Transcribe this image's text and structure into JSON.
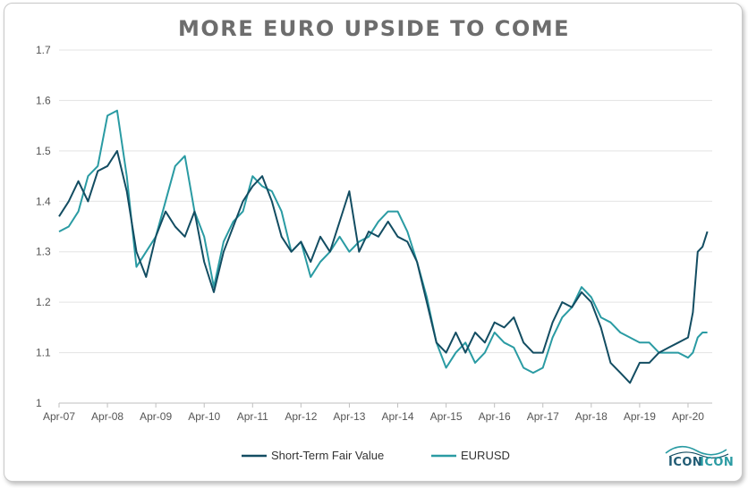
{
  "chart_data": {
    "type": "line",
    "title": "MORE EURO UPSIDE TO COME",
    "xlabel": "",
    "ylabel": "",
    "ylim": [
      1,
      1.7
    ],
    "yticks": [
      "1",
      "1.1",
      "1.2",
      "1.3",
      "1.4",
      "1.5",
      "1.6",
      "1.7"
    ],
    "xticks": [
      "Apr-07",
      "Apr-08",
      "Apr-09",
      "Apr-10",
      "Apr-11",
      "Apr-12",
      "Apr-13",
      "Apr-14",
      "Apr-15",
      "Apr-16",
      "Apr-17",
      "Apr-18",
      "Apr-19",
      "Apr-20"
    ],
    "grid": "horizontal",
    "legend_position": "bottom",
    "x": [
      2007.25,
      2007.45,
      2007.65,
      2007.85,
      2008.05,
      2008.25,
      2008.45,
      2008.65,
      2008.85,
      2009.05,
      2009.25,
      2009.45,
      2009.65,
      2009.85,
      2010.05,
      2010.25,
      2010.45,
      2010.65,
      2010.85,
      2011.05,
      2011.25,
      2011.45,
      2011.65,
      2011.85,
      2012.05,
      2012.25,
      2012.45,
      2012.65,
      2012.85,
      2013.05,
      2013.25,
      2013.45,
      2013.65,
      2013.85,
      2014.05,
      2014.25,
      2014.45,
      2014.65,
      2014.85,
      2015.05,
      2015.25,
      2015.45,
      2015.65,
      2015.85,
      2016.05,
      2016.25,
      2016.45,
      2016.65,
      2016.85,
      2017.05,
      2017.25,
      2017.45,
      2017.65,
      2017.85,
      2018.05,
      2018.25,
      2018.45,
      2018.65,
      2018.85,
      2019.05,
      2019.25,
      2019.45,
      2019.65,
      2019.85,
      2020.05,
      2020.25,
      2020.35,
      2020.45,
      2020.55,
      2020.65
    ],
    "series": [
      {
        "name": "Short-Term Fair Value",
        "color": "#134d62",
        "values": [
          1.37,
          1.4,
          1.44,
          1.4,
          1.46,
          1.47,
          1.5,
          1.42,
          1.3,
          1.25,
          1.33,
          1.38,
          1.35,
          1.33,
          1.38,
          1.28,
          1.22,
          1.3,
          1.35,
          1.4,
          1.43,
          1.45,
          1.4,
          1.33,
          1.3,
          1.32,
          1.28,
          1.33,
          1.3,
          1.36,
          1.42,
          1.3,
          1.34,
          1.33,
          1.36,
          1.33,
          1.32,
          1.28,
          1.2,
          1.12,
          1.1,
          1.14,
          1.1,
          1.14,
          1.12,
          1.16,
          1.15,
          1.17,
          1.12,
          1.1,
          1.1,
          1.16,
          1.2,
          1.19,
          1.22,
          1.2,
          1.15,
          1.08,
          1.06,
          1.04,
          1.08,
          1.08,
          1.1,
          1.11,
          1.12,
          1.13,
          1.18,
          1.3,
          1.31,
          1.34
        ]
      },
      {
        "name": "EURUSD",
        "color": "#2a9ba3",
        "values": [
          1.34,
          1.35,
          1.38,
          1.45,
          1.47,
          1.57,
          1.58,
          1.45,
          1.27,
          1.3,
          1.33,
          1.4,
          1.47,
          1.49,
          1.38,
          1.33,
          1.23,
          1.32,
          1.36,
          1.38,
          1.45,
          1.43,
          1.42,
          1.38,
          1.3,
          1.32,
          1.25,
          1.28,
          1.3,
          1.33,
          1.3,
          1.32,
          1.33,
          1.36,
          1.38,
          1.38,
          1.34,
          1.28,
          1.21,
          1.12,
          1.07,
          1.1,
          1.12,
          1.08,
          1.1,
          1.14,
          1.12,
          1.11,
          1.07,
          1.06,
          1.07,
          1.13,
          1.17,
          1.19,
          1.23,
          1.21,
          1.17,
          1.16,
          1.14,
          1.13,
          1.12,
          1.12,
          1.1,
          1.1,
          1.1,
          1.09,
          1.1,
          1.13,
          1.14,
          1.14
        ]
      }
    ],
    "watermark": "ICONICON"
  }
}
